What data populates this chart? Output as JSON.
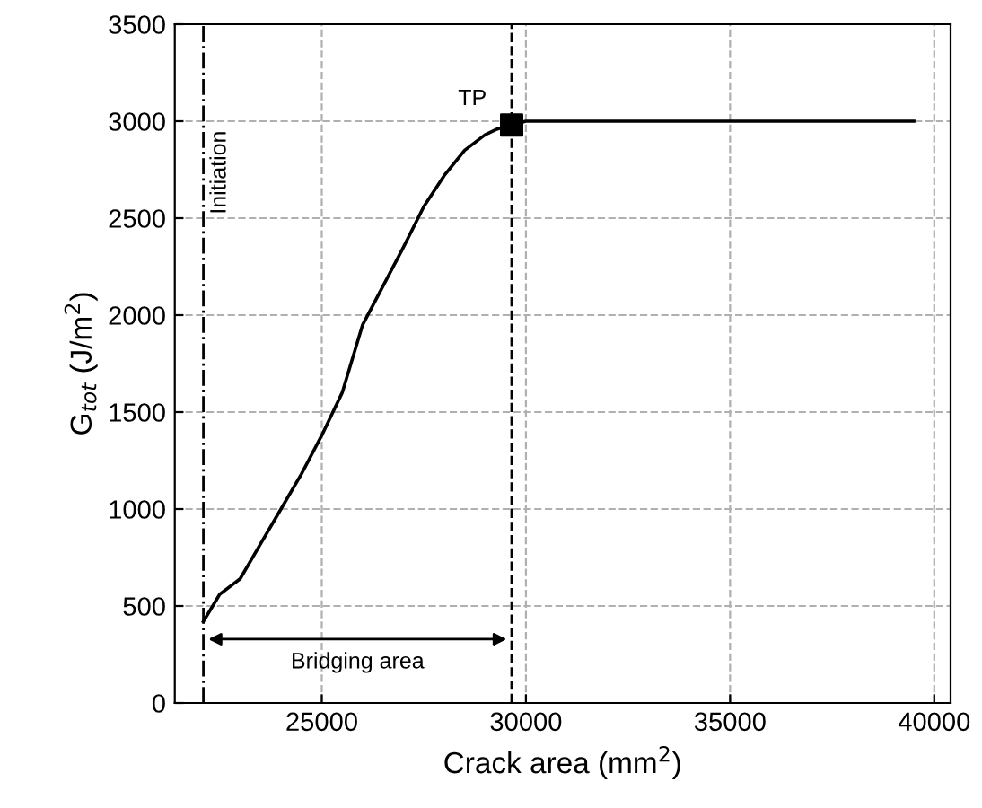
{
  "chart_data": {
    "type": "line",
    "xlabel": "Crack area (mm$^{2}$)",
    "ylabel": "G$_{tot}$ (J/m$^{2}$)",
    "xlim": [
      21400,
      40400
    ],
    "xticks": [
      25000,
      30000,
      35000,
      40000
    ],
    "ylim": [
      0,
      3500
    ],
    "yticks": [
      0,
      500,
      1000,
      1500,
      2000,
      2500,
      3000,
      3500
    ],
    "grid": true,
    "marker": "none",
    "line_style": "solid",
    "series": [
      {
        "color": "#000000",
        "x": [
          22100,
          22500,
          23000,
          23500,
          24000,
          24500,
          25000,
          25500,
          26000,
          26500,
          27000,
          27500,
          28000,
          28500,
          29000,
          29300,
          29650,
          30000,
          31000,
          33000,
          35000,
          37000,
          39500
        ],
        "values": [
          420,
          560,
          640,
          820,
          1000,
          1180,
          1380,
          1600,
          1950,
          2150,
          2350,
          2560,
          2720,
          2850,
          2930,
          2960,
          2980,
          3000,
          3000,
          3000,
          3000,
          3000,
          3000
        ]
      },
      {
        "type": "scatter",
        "marker": "square",
        "color": "#000000",
        "x": [
          29650
        ],
        "values": [
          2980
        ]
      }
    ],
    "ref_lines": [
      {
        "axis": "x",
        "value": 22100,
        "label": "Initiation",
        "line_style": "dashdot",
        "color": "#000000"
      },
      {
        "axis": "x",
        "value": 29650,
        "label": null,
        "line_style": "dashed",
        "color": "#000000"
      }
    ],
    "annotations": [
      {
        "text": "TP",
        "x": 29650,
        "y": 2980
      },
      "Bridging area"
    ]
  }
}
